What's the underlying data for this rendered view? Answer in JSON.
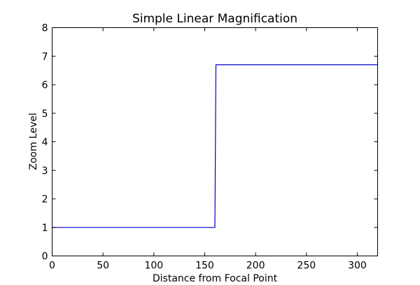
{
  "chart_data": {
    "type": "line",
    "title": "Simple Linear Magnification",
    "xlabel": "Distance from Focal Point",
    "ylabel": "Zoom Level",
    "xlim": [
      0,
      320
    ],
    "ylim": [
      0,
      8
    ],
    "xticks": [
      0,
      50,
      100,
      150,
      200,
      250,
      300
    ],
    "yticks": [
      0,
      1,
      2,
      3,
      4,
      5,
      6,
      7,
      8
    ],
    "grid": false,
    "series": [
      {
        "color": "#0000cc",
        "x": [
          0,
          160,
          161,
          320
        ],
        "y": [
          1,
          1,
          6.7,
          6.7
        ]
      }
    ]
  }
}
